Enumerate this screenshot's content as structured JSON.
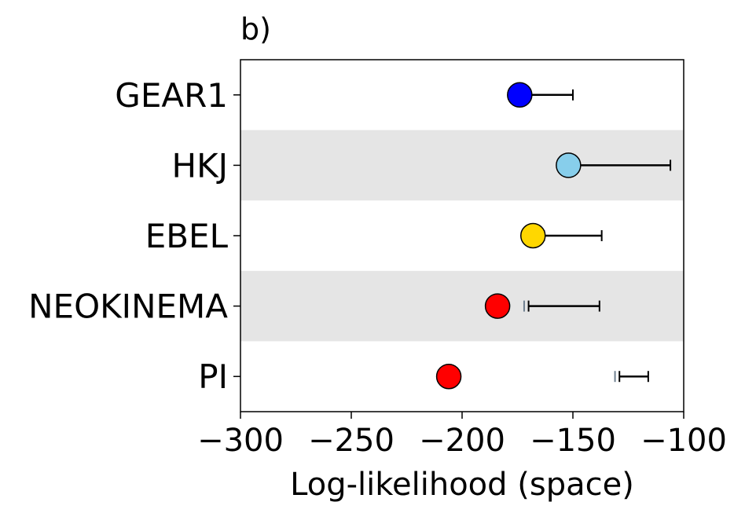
{
  "chart_data": {
    "type": "scatter",
    "panel_label": "b)",
    "xlabel": "Log-likelihood (space)",
    "xlim": [
      -300,
      -100
    ],
    "xticks": [
      -300,
      -250,
      -200,
      -150,
      -100
    ],
    "xtick_labels": [
      "−300",
      "−250",
      "−200",
      "−150",
      "−100"
    ],
    "grid": false,
    "band_color": "#e5e5e5",
    "categories": [
      "GEAR1",
      "HKJ",
      "EBEL",
      "NEOKINEMA",
      "PI"
    ],
    "points": [
      {
        "model": "GEAR1",
        "value": -174,
        "color": "#0000ff",
        "range": [
          -174,
          -150
        ],
        "secondary_marker": null
      },
      {
        "model": "HKJ",
        "value": -152,
        "color": "#87ceeb",
        "range": [
          -152,
          -106
        ],
        "secondary_marker": null
      },
      {
        "model": "EBEL",
        "value": -168,
        "color": "#ffd700",
        "range": [
          -163,
          -137
        ],
        "secondary_marker": null
      },
      {
        "model": "NEOKINEMA",
        "value": -184,
        "color": "#ff0000",
        "range": [
          -170,
          -138
        ],
        "secondary_marker": -172
      },
      {
        "model": "PI",
        "value": -206,
        "color": "#ff0000",
        "range": [
          -129,
          -116
        ],
        "secondary_marker": -131
      }
    ],
    "secondary_marker_color": "#708090"
  }
}
